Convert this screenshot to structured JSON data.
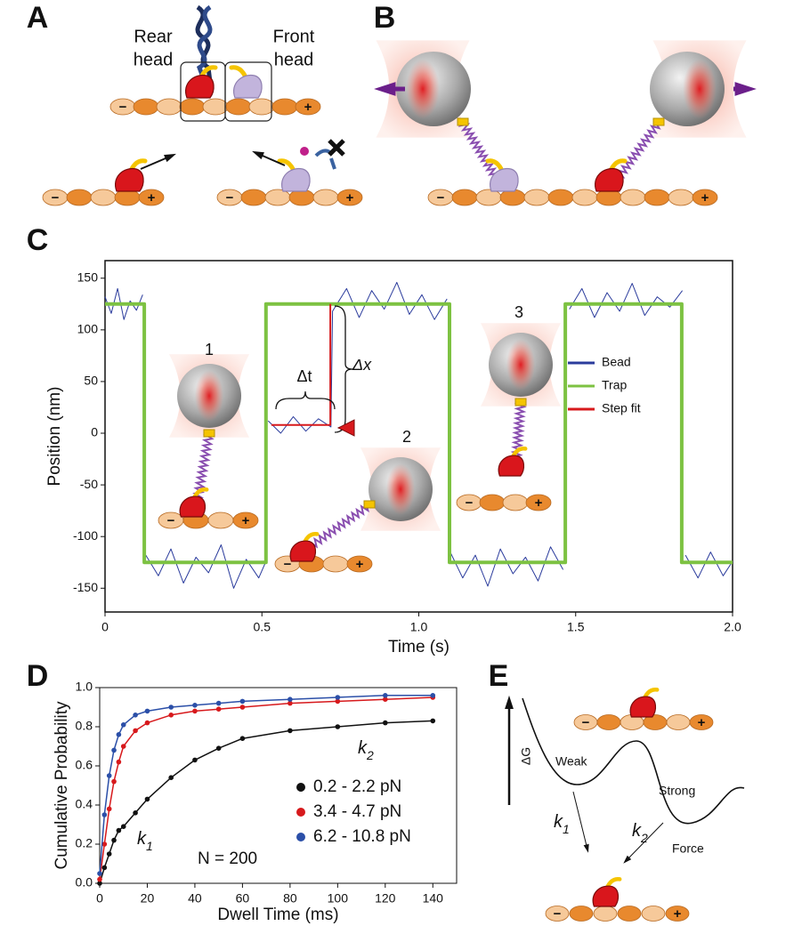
{
  "panel_labels": [
    "A",
    "B",
    "C",
    "D",
    "E"
  ],
  "panel_a": {
    "rear_head": [
      "Rear",
      "head"
    ],
    "front_head": [
      "Front",
      "head"
    ]
  },
  "signs": {
    "minus": "−",
    "plus": "+"
  },
  "chart_data": [
    {
      "type": "line",
      "xlabel": "Time (s)",
      "ylabel": "Position (nm)",
      "xlim": [
        0,
        2
      ],
      "xticks": [
        0,
        0.5,
        {
          "value": 1,
          "label": "1.0"
        },
        1.5,
        {
          "value": 2,
          "label": "2.0"
        }
      ],
      "ylim": [
        -173,
        167
      ],
      "yticks": [
        -150,
        -100,
        -50,
        0,
        50,
        100,
        150
      ],
      "legend": "right",
      "annotations": [
        "1",
        "2",
        "3",
        "Δt",
        "Δx"
      ],
      "series": [
        {
          "name": "Bead",
          "color": "#2a3b9c",
          "x": [
            0,
            0.02,
            0.04,
            0.06,
            0.08,
            0.1,
            0.12,
            0.125,
            0.13,
            0.17,
            0.21,
            0.25,
            0.29,
            0.33,
            0.37,
            0.41,
            0.45,
            0.49,
            0.51,
            0.515,
            0.52,
            0.56,
            0.6,
            0.64,
            0.68,
            0.72,
            0.725,
            0.77,
            0.81,
            0.85,
            0.89,
            0.93,
            0.97,
            1.01,
            1.05,
            1.09,
            1.095,
            1.1,
            1.14,
            1.18,
            1.22,
            1.26,
            1.3,
            1.34,
            1.38,
            1.42,
            1.46,
            1.47,
            1.48,
            1.52,
            1.56,
            1.6,
            1.64,
            1.68,
            1.72,
            1.76,
            1.8,
            1.84,
            1.845,
            1.85,
            1.89,
            1.93,
            1.97,
            2
          ],
          "values": [
            132,
            116,
            140,
            110,
            128,
            119,
            134,
            null,
            -118,
            -138,
            -112,
            -145,
            -120,
            -135,
            -108,
            -150,
            -122,
            -140,
            -126,
            null,
            12,
            0,
            16,
            2,
            14,
            6,
            118,
            140,
            112,
            138,
            120,
            146,
            115,
            134,
            110,
            130,
            null,
            -115,
            -140,
            -118,
            -148,
            -112,
            -136,
            -120,
            -143,
            -110,
            -132,
            null,
            120,
            140,
            112,
            136,
            118,
            145,
            114,
            132,
            122,
            138,
            null,
            -118,
            -140,
            -115,
            -138,
            -124
          ]
        },
        {
          "name": "Trap",
          "color": "#7dc242",
          "x": [
            0,
            0.125,
            0.125,
            0.513,
            0.513,
            1.098,
            1.098,
            1.467,
            1.467,
            1.838,
            1.838,
            2
          ],
          "values": [
            125,
            125,
            -125,
            -125,
            125,
            125,
            -125,
            -125,
            125,
            125,
            -125,
            -125
          ]
        },
        {
          "name": "Step fit",
          "color": "#d7191c",
          "x": [
            0.53,
            0.718,
            0.718
          ],
          "values": [
            8,
            8,
            125
          ]
        }
      ]
    },
    {
      "type": "scatter",
      "xlabel": "Dwell Time (ms)",
      "ylabel": "Cumulative Probability",
      "xlim": [
        0,
        150
      ],
      "xticks": [
        0,
        20,
        40,
        60,
        80,
        100,
        120,
        140
      ],
      "ylim": [
        0,
        1
      ],
      "yticks": [
        {
          "value": 0,
          "label": "0.0"
        },
        0.2,
        0.4,
        0.6,
        0.8,
        {
          "value": 1,
          "label": "1.0"
        }
      ],
      "legend": "lower right",
      "annotations": {
        "k1": {
          "text": "k",
          "sub": "1"
        },
        "k2": {
          "text": "k",
          "sub": "2"
        },
        "n": "N = 200"
      },
      "x": [
        0,
        2,
        4,
        6,
        8,
        10,
        15,
        20,
        30,
        40,
        50,
        60,
        80,
        100,
        120,
        140
      ],
      "series": [
        {
          "name": "0.2 - 2.2 pN",
          "color": "#111111",
          "values": [
            0,
            0.08,
            0.15,
            0.22,
            0.27,
            0.29,
            0.36,
            0.43,
            0.54,
            0.63,
            0.69,
            0.74,
            0.78,
            0.8,
            0.82,
            0.83
          ]
        },
        {
          "name": "3.4 - 4.7 pN",
          "color": "#d7191c",
          "values": [
            0.02,
            0.2,
            0.38,
            0.52,
            0.62,
            0.7,
            0.78,
            0.82,
            0.86,
            0.88,
            0.89,
            0.9,
            0.92,
            0.93,
            0.94,
            0.95
          ]
        },
        {
          "name": "6.2 - 10.8 pN",
          "color": "#2b4fa8",
          "values": [
            0.05,
            0.35,
            0.55,
            0.68,
            0.76,
            0.81,
            0.86,
            0.88,
            0.9,
            0.91,
            0.92,
            0.93,
            0.94,
            0.95,
            0.96,
            0.96
          ]
        }
      ]
    }
  ],
  "panel_e": {
    "delta_g": "ΔG",
    "weak": "Weak",
    "strong": "Strong",
    "k1": {
      "text": "k",
      "sub": "1"
    },
    "k2": {
      "text": "k",
      "sub": "2"
    },
    "force": "Force"
  }
}
